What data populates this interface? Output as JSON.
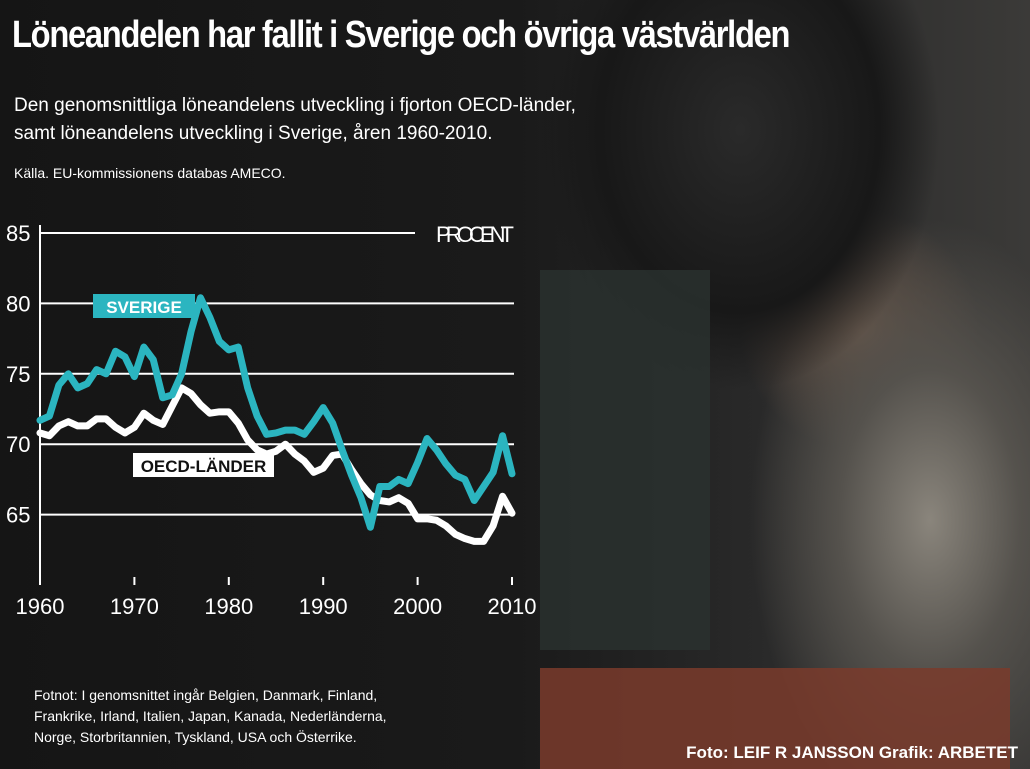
{
  "title": "Löneandelen har fallit i Sverige och övriga västvärlden",
  "subtitle_line1": "Den genomsnittliga löneandelens utveckling i fjorton OECD-länder,",
  "subtitle_line2": "samt löneandelens utveckling i Sverige, åren 1960-2010.",
  "source": "Källa. EU-kommissionens databas AMECO.",
  "footnote_line1": "Fotnot: I genomsnittet ingår Belgien, Danmark, Finland,",
  "footnote_line2": "Frankrike, Irland, Italien, Japan, Kanada, Nederländerna,",
  "footnote_line3": "Norge, Storbritannien, Tyskland, USA och Österrike.",
  "credit": "Foto: LEIF R JANSSON  Grafik: ARBETET",
  "chart_data": {
    "type": "line",
    "unit_label": "PROCENT",
    "ylim": [
      60,
      85
    ],
    "yticks": [
      65,
      70,
      75,
      80,
      85
    ],
    "xlim": [
      1960,
      2010
    ],
    "xticks": [
      1960,
      1970,
      1980,
      1990,
      2000,
      2010
    ],
    "colors": {
      "sverige": "#2bb5c0",
      "oecd": "#ffffff"
    },
    "x": [
      1960,
      1961,
      1962,
      1963,
      1964,
      1965,
      1966,
      1967,
      1968,
      1969,
      1970,
      1971,
      1972,
      1973,
      1974,
      1975,
      1976,
      1977,
      1978,
      1979,
      1980,
      1981,
      1982,
      1983,
      1984,
      1985,
      1986,
      1987,
      1988,
      1989,
      1990,
      1991,
      1992,
      1993,
      1994,
      1995,
      1996,
      1997,
      1998,
      1999,
      2000,
      2001,
      2002,
      2003,
      2004,
      2005,
      2006,
      2007,
      2008,
      2009,
      2010
    ],
    "series": [
      {
        "name": "SVERIGE",
        "values": [
          71.7,
          72,
          74.2,
          75,
          74,
          74.3,
          75.3,
          75,
          76.6,
          76.2,
          74.8,
          76.9,
          76,
          73.3,
          73.5,
          75,
          78,
          80.4,
          79,
          77.3,
          76.7,
          76.9,
          74,
          72,
          70.7,
          70.8,
          71,
          71,
          70.7,
          71.6,
          72.6,
          71.5,
          69.6,
          67.8,
          66.2,
          64.1,
          67,
          67,
          67.5,
          67.2,
          68.7,
          70.4,
          69.6,
          68.6,
          67.8,
          67.5,
          66,
          67,
          68,
          70.6,
          67.9
        ]
      },
      {
        "name": "OECD-LÄNDER",
        "values": [
          70.8,
          70.6,
          71.3,
          71.6,
          71.3,
          71.3,
          71.8,
          71.8,
          71.2,
          70.8,
          71.2,
          72.2,
          71.7,
          71.4,
          72.7,
          74,
          73.6,
          72.8,
          72.2,
          72.3,
          72.3,
          71.5,
          70.3,
          69.6,
          69.3,
          69.5,
          70,
          69.3,
          68.8,
          68,
          68.3,
          69.2,
          69.3,
          68.2,
          67.2,
          66.4,
          66,
          65.9,
          66.2,
          65.8,
          64.7,
          64.7,
          64.6,
          64.2,
          63.6,
          63.3,
          63.1,
          63.1,
          64.2,
          66.3,
          65.1
        ]
      }
    ]
  }
}
